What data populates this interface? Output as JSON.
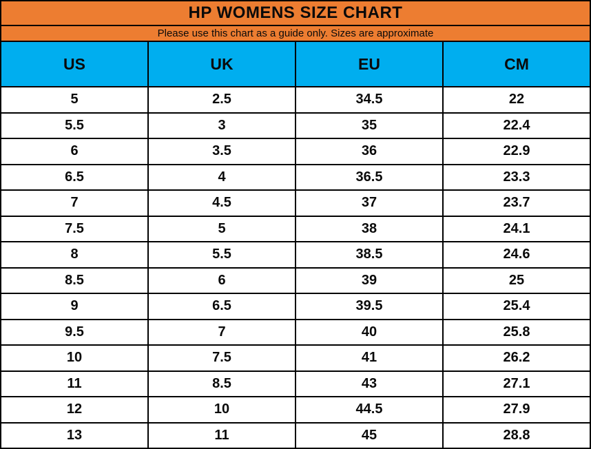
{
  "title": "HP WOMENS SIZE CHART",
  "subtitle": "Please use this chart as a guide only. Sizes are approximate",
  "colors": {
    "header_orange": "#ED7D31",
    "column_header_blue": "#00AEEF",
    "border_black": "#000000",
    "row_white": "#FFFFFF",
    "text_black": "#0A0A0A"
  },
  "chart_data": {
    "type": "table",
    "title": "HP WOMENS SIZE CHART",
    "subtitle": "Please use this chart as a guide only. Sizes are approximate",
    "columns": [
      "US",
      "UK",
      "EU",
      "CM"
    ],
    "rows": [
      [
        "5",
        "2.5",
        "34.5",
        "22"
      ],
      [
        "5.5",
        "3",
        "35",
        "22.4"
      ],
      [
        "6",
        "3.5",
        "36",
        "22.9"
      ],
      [
        "6.5",
        "4",
        "36.5",
        "23.3"
      ],
      [
        "7",
        "4.5",
        "37",
        "23.7"
      ],
      [
        "7.5",
        "5",
        "38",
        "24.1"
      ],
      [
        "8",
        "5.5",
        "38.5",
        "24.6"
      ],
      [
        "8.5",
        "6",
        "39",
        "25"
      ],
      [
        "9",
        "6.5",
        "39.5",
        "25.4"
      ],
      [
        "9.5",
        "7",
        "40",
        "25.8"
      ],
      [
        "10",
        "7.5",
        "41",
        "26.2"
      ],
      [
        "11",
        "8.5",
        "43",
        "27.1"
      ],
      [
        "12",
        "10",
        "44.5",
        "27.9"
      ],
      [
        "13",
        "11",
        "45",
        "28.8"
      ]
    ]
  }
}
